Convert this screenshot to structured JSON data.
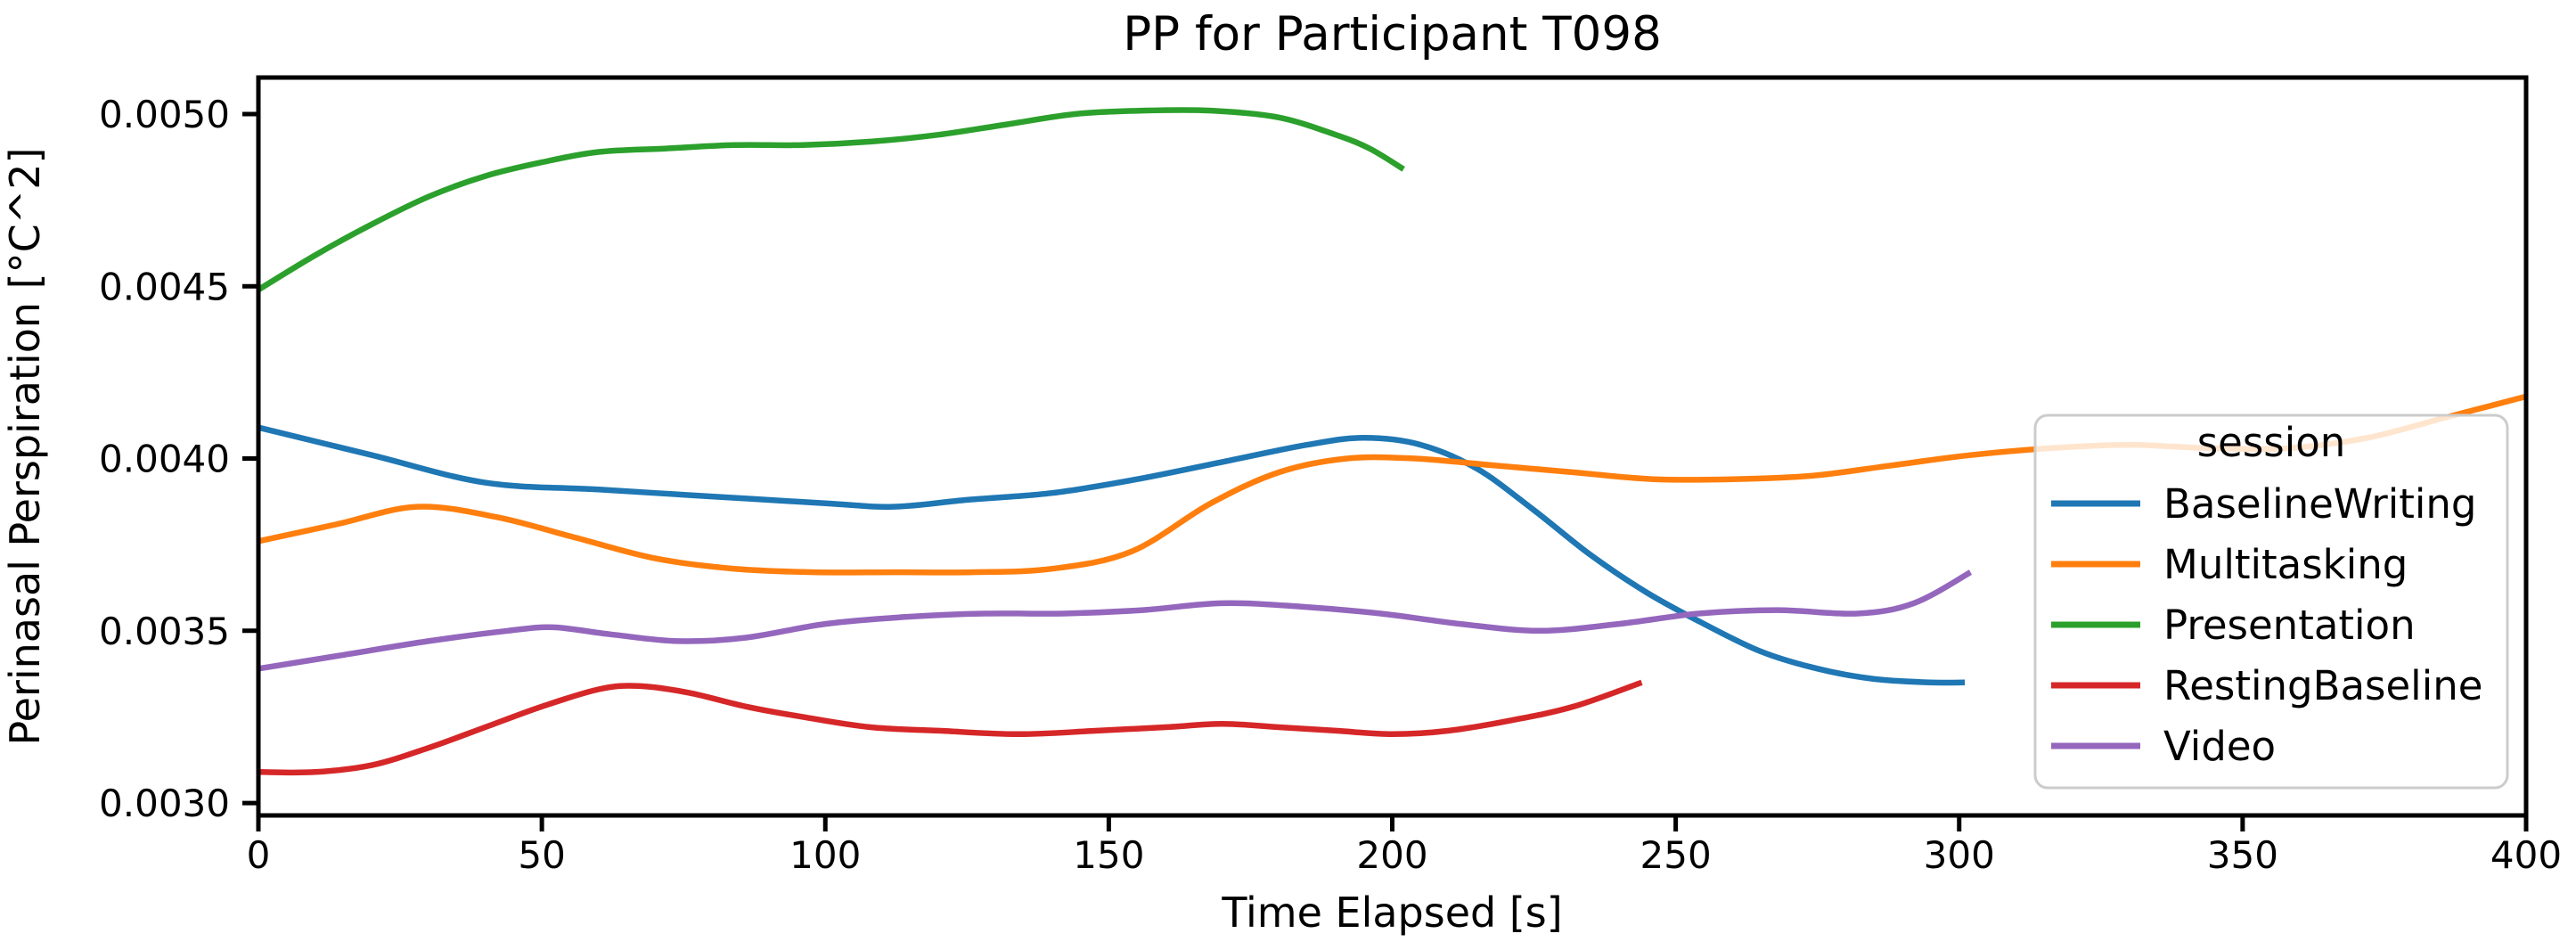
{
  "chart_data": {
    "type": "line",
    "title": "PP for Participant T098",
    "xlabel": "Time Elapsed [s]",
    "ylabel": "Perinasal Perspiration [°C^2]",
    "xlim": [
      0,
      400
    ],
    "ylim": [
      0.002964,
      0.005106
    ],
    "grid": false,
    "x_ticks": [
      0,
      50,
      100,
      150,
      200,
      250,
      300,
      350,
      400
    ],
    "y_ticks": [
      0.003,
      0.0035,
      0.004,
      0.0045,
      0.005
    ],
    "y_tick_labels": [
      "0.0030",
      "0.0035",
      "0.0040",
      "0.0045",
      "0.0050"
    ],
    "legend": {
      "title": "session",
      "position": "center right",
      "frame_color": "#cccccc",
      "frame_fill": "rgba(255,255,255,0.8)"
    },
    "series": [
      {
        "name": "BaselineWriting",
        "color": "#1f77b4",
        "x": [
          0,
          20,
          40,
          60,
          80,
          100,
          112,
          125,
          140,
          155,
          170,
          185,
          195,
          205,
          215,
          225,
          235,
          245,
          255,
          265,
          275,
          285,
          295,
          301
        ],
        "y": [
          0.00409,
          0.00401,
          0.00393,
          0.00391,
          0.00389,
          0.00387,
          0.00386,
          0.00388,
          0.0039,
          0.00394,
          0.00399,
          0.00404,
          0.00406,
          0.00404,
          0.00397,
          0.00385,
          0.00372,
          0.00361,
          0.00352,
          0.00344,
          0.00339,
          0.00336,
          0.00335,
          0.00335
        ]
      },
      {
        "name": "Multitasking",
        "color": "#ff7f0e",
        "x": [
          0,
          14,
          28,
          42,
          56,
          70,
          84,
          98,
          112,
          126,
          140,
          154,
          168,
          180,
          192,
          204,
          218,
          232,
          246,
          260,
          274,
          288,
          302,
          316,
          330,
          344,
          358,
          372,
          386,
          400
        ],
        "y": [
          0.00376,
          0.00381,
          0.00386,
          0.00383,
          0.00377,
          0.00371,
          0.00368,
          0.00367,
          0.00367,
          0.00367,
          0.00368,
          0.00373,
          0.00387,
          0.00396,
          0.004,
          0.004,
          0.00398,
          0.00396,
          0.00394,
          0.00394,
          0.00395,
          0.00398,
          0.00401,
          0.00403,
          0.00404,
          0.00403,
          0.00403,
          0.00406,
          0.00412,
          0.00418
        ]
      },
      {
        "name": "Presentation",
        "color": "#2ca02c",
        "x": [
          0,
          10,
          20,
          30,
          40,
          50,
          60,
          72,
          84,
          96,
          108,
          120,
          132,
          144,
          156,
          168,
          180,
          190,
          196,
          202
        ],
        "y": [
          0.00449,
          0.00459,
          0.00468,
          0.00476,
          0.00482,
          0.00486,
          0.00489,
          0.0049,
          0.00491,
          0.00491,
          0.00492,
          0.00494,
          0.00497,
          0.005,
          0.00501,
          0.00501,
          0.00499,
          0.00494,
          0.0049,
          0.00484
        ]
      },
      {
        "name": "RestingBaseline",
        "color": "#d62728",
        "x": [
          0,
          10,
          20,
          30,
          40,
          50,
          60,
          67,
          76,
          86,
          96,
          108,
          120,
          134,
          148,
          160,
          170,
          180,
          190,
          200,
          210,
          221,
          232,
          244
        ],
        "y": [
          0.00309,
          0.00309,
          0.00311,
          0.00316,
          0.00322,
          0.00328,
          0.00333,
          0.00334,
          0.00332,
          0.00328,
          0.00325,
          0.00322,
          0.00321,
          0.0032,
          0.00321,
          0.00322,
          0.00323,
          0.00322,
          0.00321,
          0.0032,
          0.00321,
          0.00324,
          0.00328,
          0.00335
        ]
      },
      {
        "name": "Video",
        "color": "#9467bd",
        "x": [
          0,
          15,
          30,
          44,
          52,
          62,
          74,
          86,
          100,
          114,
          128,
          142,
          156,
          170,
          184,
          198,
          212,
          226,
          240,
          254,
          268,
          282,
          292,
          302
        ],
        "y": [
          0.00339,
          0.00343,
          0.00347,
          0.0035,
          0.00351,
          0.00349,
          0.00347,
          0.00348,
          0.00352,
          0.00354,
          0.00355,
          0.00355,
          0.00356,
          0.00358,
          0.00357,
          0.00355,
          0.00352,
          0.0035,
          0.00352,
          0.00355,
          0.00356,
          0.00355,
          0.00358,
          0.00367
        ]
      }
    ]
  }
}
